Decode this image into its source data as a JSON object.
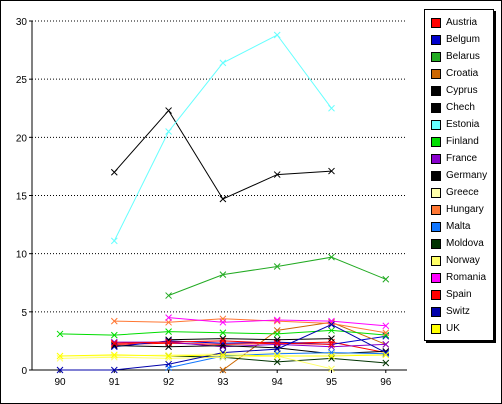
{
  "chart_data": {
    "type": "line",
    "title": "",
    "xlabel": "",
    "ylabel": "",
    "x": [
      "90",
      "91",
      "92",
      "93",
      "94",
      "95",
      "96"
    ],
    "ylim": [
      0,
      30
    ],
    "yticks": [
      "0",
      "5",
      "10",
      "15",
      "20",
      "25",
      "30"
    ],
    "grid": "horizontal dotted",
    "legend_position": "right",
    "series": [
      {
        "name": "Austria",
        "color": "#ff0000",
        "values": [
          null,
          2.2,
          2.3,
          2.2,
          2.3,
          2.4,
          1.5
        ]
      },
      {
        "name": "Belgum",
        "color": "#0000cc",
        "values": [
          null,
          2.0,
          2.5,
          2.3,
          2.4,
          2.2,
          2.9
        ]
      },
      {
        "name": "Belarus",
        "color": "#22aa22",
        "values": [
          null,
          null,
          6.4,
          8.2,
          8.9,
          9.7,
          7.8
        ]
      },
      {
        "name": "Croatia",
        "color": "#cc6600",
        "values": [
          null,
          null,
          null,
          0.0,
          3.4,
          4.1,
          2.2
        ]
      },
      {
        "name": "Cyprus",
        "color": "#000000",
        "values": [
          null,
          17.0,
          22.3,
          14.7,
          16.8,
          17.1,
          null
        ]
      },
      {
        "name": "Chech",
        "color": "#000000",
        "values": [
          null,
          null,
          2.6,
          2.7,
          2.6,
          2.7,
          null
        ]
      },
      {
        "name": "Estonia",
        "color": "#66ffff",
        "values": [
          null,
          11.1,
          20.5,
          26.4,
          28.8,
          22.5,
          null
        ]
      },
      {
        "name": "Finland",
        "color": "#00dd00",
        "values": [
          3.1,
          3.0,
          3.3,
          3.2,
          3.1,
          3.4,
          3.0
        ]
      },
      {
        "name": "France",
        "color": "#8800cc",
        "values": [
          null,
          2.4,
          2.4,
          2.0,
          2.2,
          2.0,
          2.2
        ]
      },
      {
        "name": "Germany",
        "color": "#000000",
        "values": [
          null,
          2.1,
          2.0,
          2.1,
          1.9,
          1.4,
          1.6
        ]
      },
      {
        "name": "Greece",
        "color": "#ffffaa",
        "values": [
          1.2,
          1.2,
          1.3,
          1.4,
          1.5,
          1.4,
          1.3
        ]
      },
      {
        "name": "Hungary",
        "color": "#ff7733",
        "values": [
          null,
          4.2,
          4.1,
          4.4,
          4.2,
          4.0,
          3.2
        ]
      },
      {
        "name": "Malta",
        "color": "#1177ff",
        "values": [
          null,
          null,
          0.2,
          1.2,
          1.4,
          1.5,
          1.4
        ]
      },
      {
        "name": "Moldova",
        "color": "#003300",
        "values": [
          null,
          null,
          1.2,
          1.1,
          0.7,
          1.0,
          0.6
        ]
      },
      {
        "name": "Norway",
        "color": "#ffff66",
        "values": [
          1.0,
          1.1,
          1.0,
          1.1,
          1.2,
          0.1,
          null
        ]
      },
      {
        "name": "Romania",
        "color": "#ff00ff",
        "values": [
          null,
          null,
          4.5,
          4.1,
          4.3,
          4.2,
          3.8
        ]
      },
      {
        "name": "Spain",
        "color": "#ff0000",
        "values": [
          null,
          2.3,
          2.4,
          2.5,
          2.3,
          2.2,
          null
        ]
      },
      {
        "name": "Switz",
        "color": "#0000aa",
        "values": [
          0.0,
          0.0,
          0.5,
          1.5,
          1.8,
          3.9,
          1.5
        ]
      },
      {
        "name": "UK",
        "color": "#ffff00",
        "values": [
          1.2,
          1.3,
          1.2,
          1.3,
          1.2,
          1.2,
          1.3
        ]
      }
    ]
  }
}
